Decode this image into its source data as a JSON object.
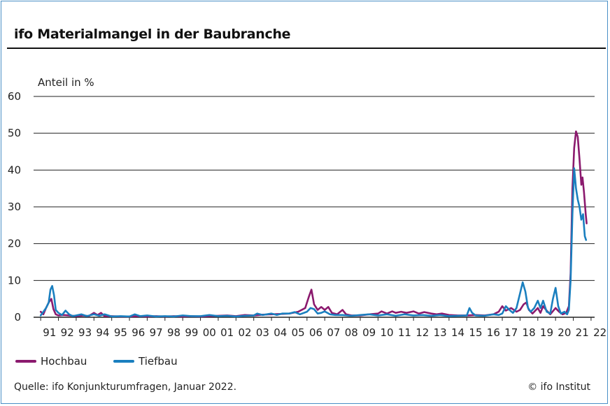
{
  "title": "ifo Materialmangel in der Baubranche",
  "source": "Quelle: ifo Konjunkturumfragen, Januar 2022.",
  "copyright": "© ifo Institut",
  "chart_data": {
    "type": "line",
    "ylabel": "Anteil in %",
    "xlabel": "",
    "ylim": [
      0,
      60
    ],
    "yticks": [
      "0",
      "10",
      "20",
      "30",
      "40",
      "50",
      "60"
    ],
    "xticks": [
      "91",
      "92",
      "93",
      "94",
      "95",
      "96",
      "97",
      "98",
      "99",
      "00",
      "01",
      "02",
      "03",
      "04",
      "05",
      "06",
      "07",
      "08",
      "09",
      "10",
      "11",
      "12",
      "13",
      "14",
      "15",
      "16",
      "17",
      "18",
      "19",
      "20",
      "21",
      "22"
    ],
    "grid": "horizontal",
    "legend_position": "bottom-left",
    "series": [
      {
        "name": "Hochbau",
        "color": "#8b1a6e",
        "points": [
          [
            1991.0,
            1.5
          ],
          [
            1991.15,
            0.8
          ],
          [
            1991.3,
            2.5
          ],
          [
            1991.45,
            4.0
          ],
          [
            1991.6,
            5.0
          ],
          [
            1991.72,
            2.2
          ],
          [
            1991.85,
            0.8
          ],
          [
            1992.0,
            0.5
          ],
          [
            1992.3,
            0.6
          ],
          [
            1992.6,
            0.5
          ],
          [
            1993.0,
            0.3
          ],
          [
            1993.4,
            0.5
          ],
          [
            1993.7,
            0.3
          ],
          [
            1994.0,
            1.2
          ],
          [
            1994.2,
            0.6
          ],
          [
            1994.4,
            1.2
          ],
          [
            1994.6,
            0.3
          ],
          [
            1995.0,
            0.3
          ],
          [
            1995.5,
            0.2
          ],
          [
            1996.0,
            0.2
          ],
          [
            1996.5,
            0.3
          ],
          [
            1997.0,
            0.2
          ],
          [
            1997.5,
            0.3
          ],
          [
            1998.0,
            0.2
          ],
          [
            1998.5,
            0.3
          ],
          [
            1999.0,
            0.2
          ],
          [
            1999.5,
            0.3
          ],
          [
            2000.0,
            0.2
          ],
          [
            2000.5,
            0.3
          ],
          [
            2001.0,
            0.4
          ],
          [
            2001.5,
            0.5
          ],
          [
            2002.0,
            0.3
          ],
          [
            2002.5,
            0.6
          ],
          [
            2003.0,
            0.5
          ],
          [
            2003.5,
            0.7
          ],
          [
            2004.0,
            0.8
          ],
          [
            2004.5,
            0.9
          ],
          [
            2005.0,
            1.0
          ],
          [
            2005.5,
            1.5
          ],
          [
            2005.9,
            2.5
          ],
          [
            2006.1,
            5.5
          ],
          [
            2006.25,
            7.5
          ],
          [
            2006.4,
            3.5
          ],
          [
            2006.6,
            2.0
          ],
          [
            2006.8,
            2.8
          ],
          [
            2007.0,
            2.0
          ],
          [
            2007.2,
            2.8
          ],
          [
            2007.4,
            1.2
          ],
          [
            2007.7,
            0.8
          ],
          [
            2008.0,
            2.0
          ],
          [
            2008.2,
            0.8
          ],
          [
            2008.5,
            0.5
          ],
          [
            2009.0,
            0.5
          ],
          [
            2009.5,
            0.8
          ],
          [
            2010.0,
            1.0
          ],
          [
            2010.2,
            1.6
          ],
          [
            2010.5,
            1.0
          ],
          [
            2010.8,
            1.6
          ],
          [
            2011.0,
            1.2
          ],
          [
            2011.3,
            1.5
          ],
          [
            2011.6,
            1.2
          ],
          [
            2012.0,
            1.6
          ],
          [
            2012.3,
            1.0
          ],
          [
            2012.6,
            1.4
          ],
          [
            2013.0,
            1.0
          ],
          [
            2013.3,
            0.8
          ],
          [
            2013.6,
            1.0
          ],
          [
            2014.0,
            0.6
          ],
          [
            2014.5,
            0.5
          ],
          [
            2015.0,
            0.5
          ],
          [
            2015.5,
            0.6
          ],
          [
            2016.0,
            0.5
          ],
          [
            2016.5,
            0.8
          ],
          [
            2016.8,
            1.5
          ],
          [
            2017.0,
            3.0
          ],
          [
            2017.2,
            1.8
          ],
          [
            2017.5,
            2.5
          ],
          [
            2017.8,
            1.5
          ],
          [
            2018.0,
            2.0
          ],
          [
            2018.2,
            3.5
          ],
          [
            2018.35,
            4.0
          ],
          [
            2018.5,
            2.0
          ],
          [
            2018.7,
            1.0
          ],
          [
            2019.0,
            2.5
          ],
          [
            2019.15,
            1.2
          ],
          [
            2019.3,
            3.0
          ],
          [
            2019.5,
            1.8
          ],
          [
            2019.7,
            0.8
          ],
          [
            2020.0,
            2.5
          ],
          [
            2020.2,
            1.5
          ],
          [
            2020.4,
            0.8
          ],
          [
            2020.6,
            1.2
          ],
          [
            2020.75,
            3.0
          ],
          [
            2020.85,
            12.0
          ],
          [
            2020.95,
            35.0
          ],
          [
            2021.05,
            46.0
          ],
          [
            2021.15,
            50.5
          ],
          [
            2021.25,
            49.0
          ],
          [
            2021.35,
            43.0
          ],
          [
            2021.45,
            36.0
          ],
          [
            2021.52,
            38.0
          ],
          [
            2021.6,
            34.0
          ],
          [
            2021.7,
            28.0
          ],
          [
            2021.75,
            25.5
          ]
        ]
      },
      {
        "name": "Tiefbau",
        "color": "#1a7fbf",
        "points": [
          [
            1991.0,
            0.5
          ],
          [
            1991.15,
            1.5
          ],
          [
            1991.3,
            2.5
          ],
          [
            1991.45,
            4.0
          ],
          [
            1991.55,
            7.5
          ],
          [
            1991.65,
            8.5
          ],
          [
            1991.75,
            6.0
          ],
          [
            1991.85,
            2.0
          ],
          [
            1992.0,
            1.2
          ],
          [
            1992.2,
            0.6
          ],
          [
            1992.4,
            1.8
          ],
          [
            1992.6,
            0.8
          ],
          [
            1992.8,
            0.3
          ],
          [
            1993.0,
            0.5
          ],
          [
            1993.3,
            0.8
          ],
          [
            1993.6,
            0.3
          ],
          [
            1994.0,
            0.8
          ],
          [
            1994.3,
            0.4
          ],
          [
            1994.6,
            0.8
          ],
          [
            1995.0,
            0.2
          ],
          [
            1995.5,
            0.3
          ],
          [
            1996.0,
            0.2
          ],
          [
            1996.3,
            0.8
          ],
          [
            1996.6,
            0.3
          ],
          [
            1997.0,
            0.5
          ],
          [
            1997.5,
            0.2
          ],
          [
            1998.0,
            0.3
          ],
          [
            1998.5,
            0.2
          ],
          [
            1999.0,
            0.5
          ],
          [
            1999.5,
            0.3
          ],
          [
            2000.0,
            0.3
          ],
          [
            2000.5,
            0.6
          ],
          [
            2001.0,
            0.3
          ],
          [
            2001.5,
            0.4
          ],
          [
            2002.0,
            0.2
          ],
          [
            2002.5,
            0.4
          ],
          [
            2003.0,
            0.5
          ],
          [
            2003.2,
            1.0
          ],
          [
            2003.5,
            0.6
          ],
          [
            2004.0,
            1.0
          ],
          [
            2004.3,
            0.6
          ],
          [
            2004.6,
            1.0
          ],
          [
            2005.0,
            1.0
          ],
          [
            2005.3,
            1.4
          ],
          [
            2005.6,
            0.8
          ],
          [
            2006.0,
            1.5
          ],
          [
            2006.2,
            2.5
          ],
          [
            2006.4,
            2.2
          ],
          [
            2006.6,
            1.0
          ],
          [
            2006.8,
            1.2
          ],
          [
            2007.0,
            1.6
          ],
          [
            2007.3,
            0.8
          ],
          [
            2007.6,
            0.6
          ],
          [
            2008.0,
            0.6
          ],
          [
            2008.5,
            0.4
          ],
          [
            2009.0,
            0.6
          ],
          [
            2009.5,
            0.8
          ],
          [
            2010.0,
            0.5
          ],
          [
            2010.5,
            0.8
          ],
          [
            2011.0,
            0.4
          ],
          [
            2011.5,
            0.8
          ],
          [
            2012.0,
            0.5
          ],
          [
            2012.5,
            0.6
          ],
          [
            2013.0,
            0.4
          ],
          [
            2013.5,
            0.6
          ],
          [
            2014.0,
            0.3
          ],
          [
            2014.5,
            0.4
          ],
          [
            2015.0,
            0.5
          ],
          [
            2015.15,
            2.5
          ],
          [
            2015.3,
            1.2
          ],
          [
            2015.5,
            0.5
          ],
          [
            2016.0,
            0.4
          ],
          [
            2016.5,
            0.8
          ],
          [
            2016.8,
            0.6
          ],
          [
            2017.0,
            1.0
          ],
          [
            2017.2,
            3.0
          ],
          [
            2017.4,
            2.0
          ],
          [
            2017.6,
            1.2
          ],
          [
            2017.8,
            2.5
          ],
          [
            2018.0,
            6.5
          ],
          [
            2018.15,
            9.5
          ],
          [
            2018.3,
            7.0
          ],
          [
            2018.45,
            2.5
          ],
          [
            2018.6,
            1.5
          ],
          [
            2018.8,
            2.5
          ],
          [
            2019.0,
            4.5
          ],
          [
            2019.15,
            2.5
          ],
          [
            2019.3,
            4.5
          ],
          [
            2019.5,
            1.5
          ],
          [
            2019.7,
            1.0
          ],
          [
            2019.85,
            5.0
          ],
          [
            2020.0,
            8.0
          ],
          [
            2020.15,
            3.0
          ],
          [
            2020.3,
            1.0
          ],
          [
            2020.5,
            1.5
          ],
          [
            2020.65,
            0.8
          ],
          [
            2020.75,
            2.0
          ],
          [
            2020.85,
            10.0
          ],
          [
            2020.95,
            28.0
          ],
          [
            2021.05,
            40.5
          ],
          [
            2021.15,
            35.0
          ],
          [
            2021.25,
            32.0
          ],
          [
            2021.35,
            30.0
          ],
          [
            2021.45,
            26.5
          ],
          [
            2021.55,
            28.0
          ],
          [
            2021.65,
            22.0
          ],
          [
            2021.72,
            21.0
          ]
        ]
      }
    ]
  }
}
